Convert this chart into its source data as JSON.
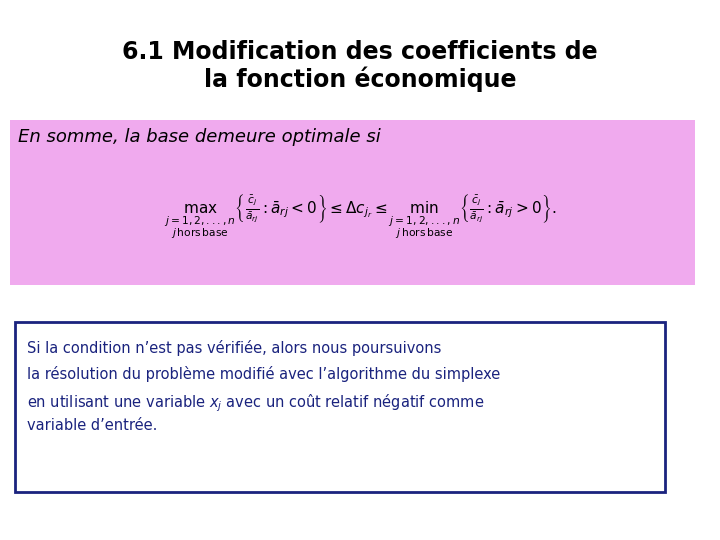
{
  "title_line1": "6.1 Modification des coefficients de",
  "title_line2": "la fonction économique",
  "title_fontsize": 17,
  "pink_box_color": "#f0aaee",
  "bottom_box_border": "#1a237e",
  "bottom_text_color": "#1a237e",
  "bg_color": "#ffffff",
  "bottom_box_line1": "Si la condition n’est pas vérifiée, alors nous poursuivons",
  "bottom_box_line2": "la résolution du problème modifié avec l’algorithme du simplexe",
  "bottom_box_line3": "en utilisant une variable $x_j$ avec un coût relatif négatif comme",
  "bottom_box_line4": "variable d’entrée."
}
